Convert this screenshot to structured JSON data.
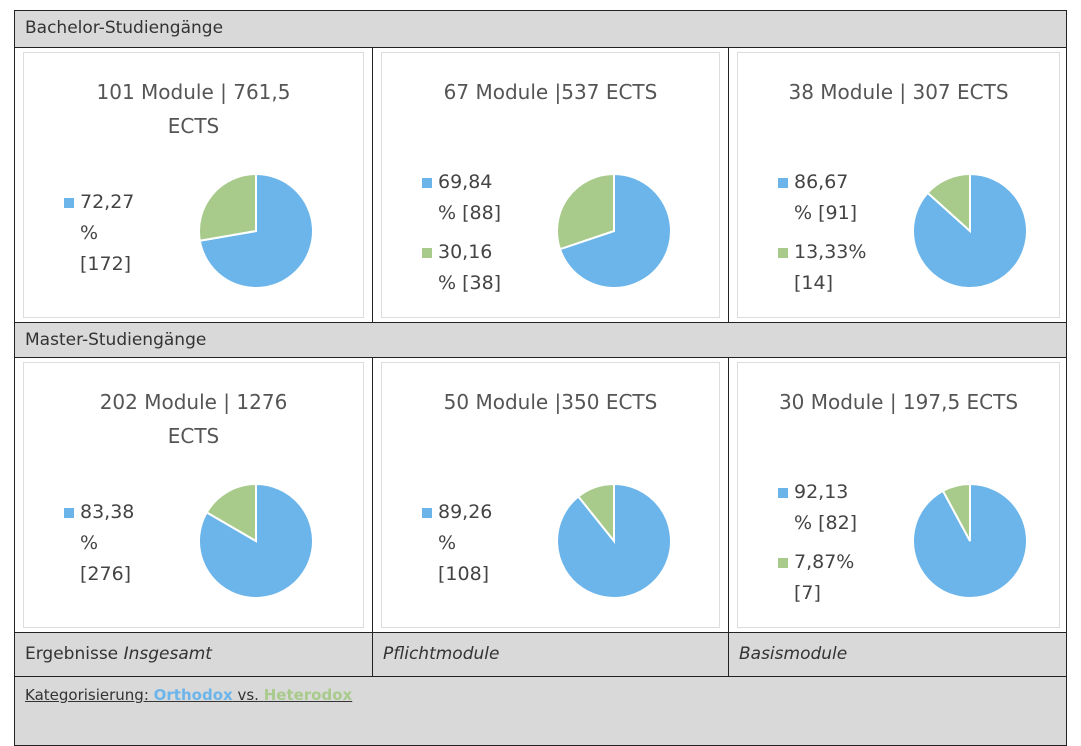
{
  "colors": [
    "#6cb5ea",
    "#a8cb8c"
  ],
  "sections": [
    {
      "heading": "Bachelor-Studiengänge",
      "cells": [
        {
          "title": "101 Module | 761,5 ECTS",
          "values": [
            72.27,
            27.73
          ],
          "value_labels": [
            "72,27 % [172]",
            null
          ]
        },
        {
          "title": "67 Module |537 ECTS",
          "values": [
            69.84,
            30.16
          ],
          "value_labels": [
            "69,84 % [88]",
            "30,16 % [38]"
          ]
        },
        {
          "title": "38 Module | 307 ECTS",
          "values": [
            86.67,
            13.33
          ],
          "value_labels": [
            "86,67 % [91]",
            "13,33% [14]"
          ]
        }
      ]
    },
    {
      "heading": "Master-Studiengänge",
      "cells": [
        {
          "title": "202 Module | 1276 ECTS",
          "values": [
            83.38,
            16.62
          ],
          "value_labels": [
            "83,38 % [276]",
            null
          ]
        },
        {
          "title": "50 Module |350 ECTS",
          "values": [
            89.26,
            10.74
          ],
          "value_labels": [
            "89,26 % [108]",
            null
          ]
        },
        {
          "title": "30 Module | 197,5 ECTS",
          "values": [
            92.13,
            7.87
          ],
          "value_labels": [
            "92,13 % [82]",
            "7,87% [7]"
          ]
        }
      ]
    }
  ],
  "footer": {
    "col1_plain": "Ergebnisse",
    "col1_italic": "Insgesamt",
    "col2": "Pflichtmodule",
    "col3": "Basismodule"
  },
  "caption": {
    "label": "Kategorisierung:",
    "orthodox": "Orthodox",
    "vs": "vs.",
    "heterodox": "Heterodox"
  }
}
